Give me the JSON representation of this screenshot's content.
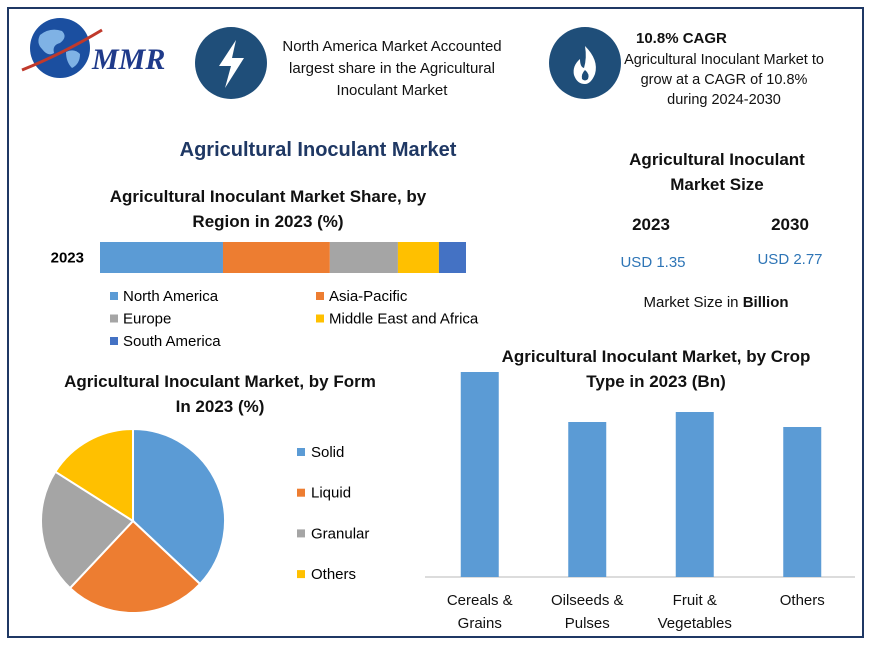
{
  "header": {
    "logo": "MMR",
    "highlight_1": "North America Market Accounted largest share in the Agricultural Inoculant Market",
    "highlight_2_title": "10.8% CAGR",
    "highlight_2": "Agricultural Inoculant Market to grow at a CAGR of 10.8% during 2024-2030"
  },
  "title": "Agricultural Inoculant Market",
  "market_size": {
    "title": "Agricultural Inoculant Market Size",
    "years": [
      "2023",
      "2030"
    ],
    "values": [
      "USD 1.35",
      "USD 2.77"
    ],
    "note": "Market Size in",
    "note_unit": "Billion"
  },
  "chart_data": [
    {
      "type": "stacked_hbar",
      "title": "Agricultural Inoculant  Market Share, by Region in 2023 (%)",
      "categories": [
        "2023"
      ],
      "xlim": [
        0,
        100
      ],
      "series": [
        {
          "name": "North America",
          "color": "#5b9bd5",
          "values": [
            33.6
          ]
        },
        {
          "name": "Asia-Pacific",
          "color": "#ed7d31",
          "values": [
            29.2
          ]
        },
        {
          "name": "Europe",
          "color": "#a5a5a5",
          "values": [
            18.6
          ]
        },
        {
          "name": "Middle East and Africa",
          "color": "#ffc000",
          "values": [
            11.2
          ]
        },
        {
          "name": "South America",
          "color": "#4472c4",
          "values": [
            7.4
          ]
        }
      ]
    },
    {
      "type": "pie",
      "title": "Agricultural Inoculant  Market, by Form In 2023 (%)",
      "categories": [
        "Solid",
        "Liquid",
        "Granular",
        "Others"
      ],
      "values": [
        37,
        25,
        22,
        16
      ],
      "colors": [
        "#5b9bd5",
        "#ed7d31",
        "#a5a5a5",
        "#ffc000"
      ]
    },
    {
      "type": "bar",
      "title": "Agricultural Inoculant  Market, by Crop Type in 2023 (Bn)",
      "categories": [
        "Cereals & Grains",
        "Oilseeds & Pulses",
        "Fruit & Vegetables",
        "Others"
      ],
      "values": [
        0.41,
        0.31,
        0.33,
        0.3
      ],
      "color": "#5b9bd5",
      "ylim": [
        0,
        0.5
      ]
    }
  ]
}
